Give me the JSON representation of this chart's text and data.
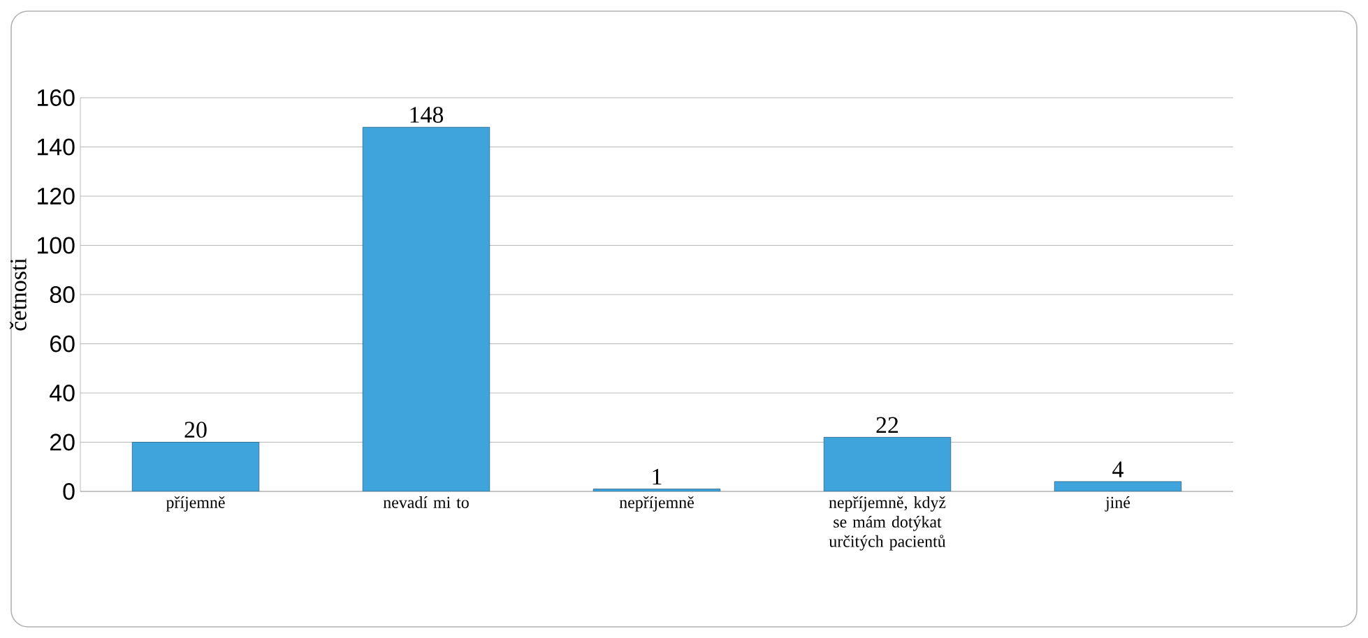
{
  "chart_data": {
    "type": "bar",
    "ylabel": "četnosti",
    "categories": [
      "příjemně",
      "nevadí mi to",
      "nepříjemně",
      "nepříjemně, když se mám dotýkat určitých pacientů",
      "jiné"
    ],
    "values": [
      20,
      148,
      1,
      22,
      4
    ],
    "color": "#3fa3dc",
    "ylim": [
      0,
      160
    ],
    "yticks": [
      0,
      20,
      40,
      60,
      80,
      100,
      120,
      140,
      160
    ],
    "grid": "y",
    "data_labels": true
  }
}
